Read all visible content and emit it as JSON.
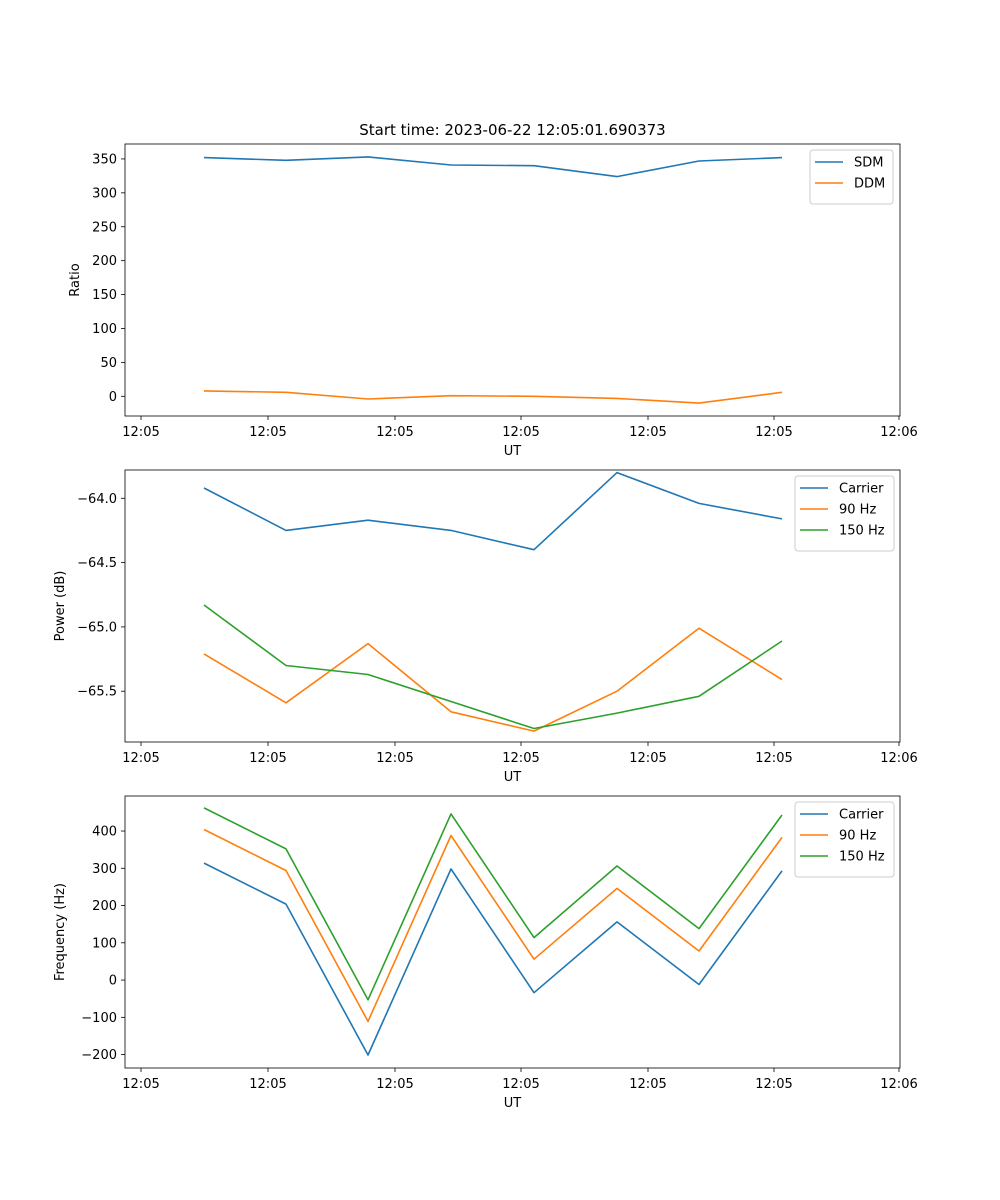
{
  "chart_data": [
    {
      "type": "line",
      "title": "Start time: 2023-06-22 12:05:01.690373",
      "xlabel": "UT",
      "ylabel": "Ratio",
      "x_tick_labels": [
        "12:05",
        "12:05",
        "12:05",
        "12:05",
        "12:05",
        "12:05",
        "12:06"
      ],
      "y_ticks": [
        0,
        50,
        100,
        150,
        200,
        250,
        300,
        350
      ],
      "ylim": [
        -29,
        372
      ],
      "legend_position": "upper-right",
      "grid": false,
      "series": [
        {
          "name": "SDM",
          "color": "#1f77b4",
          "values": [
            352,
            348,
            353,
            341,
            340,
            324,
            347,
            352
          ]
        },
        {
          "name": "DDM",
          "color": "#ff7f0e",
          "values": [
            8,
            6,
            -4,
            1,
            0,
            -3,
            -10,
            6
          ]
        }
      ]
    },
    {
      "type": "line",
      "title": "",
      "xlabel": "UT",
      "ylabel": "Power (dB)",
      "x_tick_labels": [
        "12:05",
        "12:05",
        "12:05",
        "12:05",
        "12:05",
        "12:05",
        "12:06"
      ],
      "y_ticks": [
        -65.5,
        -65.0,
        -64.5,
        -64.0
      ],
      "y_tick_labels": [
        "−65.5",
        "−65.0",
        "−64.5",
        "−64.0"
      ],
      "ylim": [
        -65.895,
        -63.78
      ],
      "legend_position": "upper-right",
      "grid": false,
      "series": [
        {
          "name": "Carrier",
          "color": "#1f77b4",
          "values": [
            -63.92,
            -64.25,
            -64.17,
            -64.25,
            -64.4,
            -63.8,
            -64.04,
            -64.16
          ]
        },
        {
          "name": "90 Hz",
          "color": "#ff7f0e",
          "values": [
            -65.21,
            -65.59,
            -65.13,
            -65.66,
            -65.81,
            -65.5,
            -65.01,
            -65.41
          ]
        },
        {
          "name": "150 Hz",
          "color": "#2ca02c",
          "values": [
            -64.83,
            -65.3,
            -65.37,
            -65.58,
            -65.79,
            -65.67,
            -65.54,
            -65.11
          ]
        }
      ]
    },
    {
      "type": "line",
      "title": "",
      "xlabel": "UT",
      "ylabel": "Frequency (Hz)",
      "x_tick_labels": [
        "12:05",
        "12:05",
        "12:05",
        "12:05",
        "12:05",
        "12:05",
        "12:06"
      ],
      "y_ticks": [
        -200,
        -100,
        0,
        100,
        200,
        300,
        400
      ],
      "y_tick_labels": [
        "−200",
        "−100",
        "0",
        "100",
        "200",
        "300",
        "400"
      ],
      "ylim": [
        -236,
        494
      ],
      "legend_position": "upper-right",
      "grid": false,
      "series": [
        {
          "name": "Carrier",
          "color": "#1f77b4",
          "values": [
            314,
            204,
            -201,
            298,
            -34,
            156,
            -12,
            293
          ]
        },
        {
          "name": "90 Hz",
          "color": "#ff7f0e",
          "values": [
            404,
            294,
            -111,
            388,
            56,
            246,
            78,
            383
          ]
        },
        {
          "name": "150 Hz",
          "color": "#2ca02c",
          "values": [
            462,
            352,
            -53,
            446,
            114,
            306,
            138,
            443
          ]
        }
      ]
    }
  ]
}
